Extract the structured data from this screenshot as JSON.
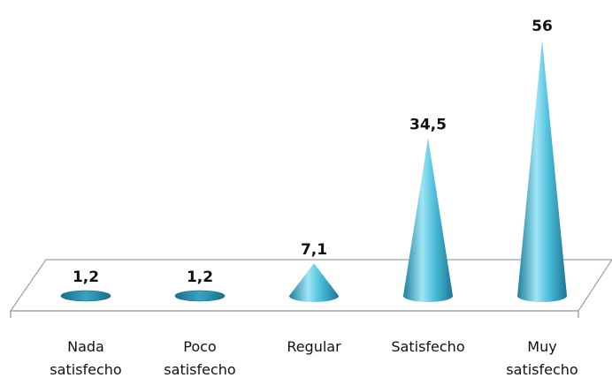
{
  "chart_data": {
    "type": "bar",
    "shape": "cone",
    "categories": [
      [
        "Nada",
        "satisfecho"
      ],
      [
        "Poco",
        "satisfecho"
      ],
      [
        "Regular"
      ],
      [
        "Satisfecho"
      ],
      [
        "Muy",
        "satisfecho"
      ]
    ],
    "values": [
      1.2,
      1.2,
      7.1,
      34.5,
      56
    ],
    "data_labels": [
      "1,2",
      "1,2",
      "7,1",
      "34,5",
      "56"
    ],
    "title": "",
    "xlabel": "",
    "ylabel": "",
    "ylim": [
      0,
      56
    ],
    "grid": false,
    "legend": "none",
    "colors": {
      "cone_dark": "#1e7f9d",
      "cone_mid": "#3fb0d0",
      "cone_light": "#9fe4f4",
      "floor_stroke": "#8a8a8a"
    }
  }
}
